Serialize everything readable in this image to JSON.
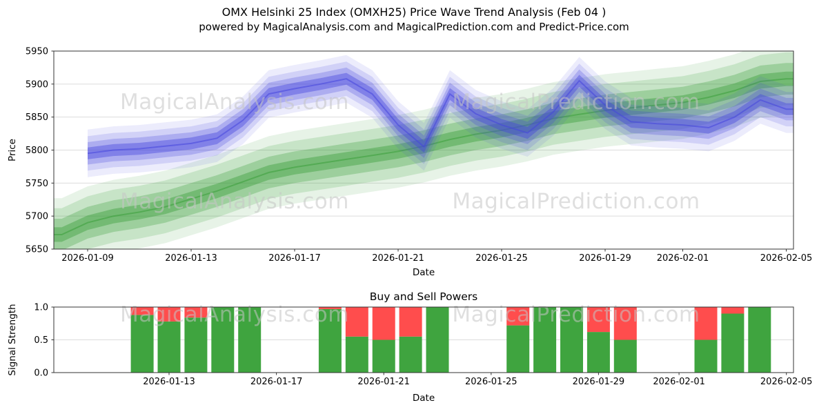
{
  "header": {
    "title_line1": "OMX Helsinki 25 Index (OMXH25) Price Wave Trend Analysis (Feb 04 )",
    "title_line2": "powered by MagicalAnalysis.com and MagicalPrediction.com and Predict-Price.com"
  },
  "chart_data": [
    {
      "type": "area",
      "title": "OMX Helsinki 25 Index (OMXH25) Price Wave Trend Analysis (Feb 04 )",
      "xlabel": "Date",
      "ylabel": "Price",
      "ylim": [
        5650,
        5950
      ],
      "yticks": [
        "5650",
        "5700",
        "5750",
        "5800",
        "5850",
        "5900",
        "5950"
      ],
      "xticks": [
        "2026-01-09",
        "2026-01-13",
        "2026-01-17",
        "2026-01-21",
        "2026-01-25",
        "2026-01-29",
        "2026-02-01",
        "2026-02-05"
      ],
      "grid": "horizontal",
      "legend": "none",
      "watermarks": [
        "MagicalAnalysis.com",
        "MagicalPrediction.com"
      ],
      "series": [
        {
          "name": "analysis-trend-band",
          "color": "#3a9e3a",
          "dates": [
            "2026-01-08",
            "2026-01-09",
            "2026-01-10",
            "2026-01-11",
            "2026-01-12",
            "2026-01-13",
            "2026-01-14",
            "2026-01-15",
            "2026-01-16",
            "2026-01-17",
            "2026-01-18",
            "2026-01-19",
            "2026-01-20",
            "2026-01-21",
            "2026-01-22",
            "2026-01-23",
            "2026-01-24",
            "2026-01-25",
            "2026-01-26",
            "2026-01-27",
            "2026-01-28",
            "2026-01-29",
            "2026-01-30",
            "2026-01-31",
            "2026-02-01",
            "2026-02-02",
            "2026-02-03",
            "2026-02-04",
            "2026-02-05"
          ],
          "values": [
            5672,
            5690,
            5700,
            5706,
            5714,
            5726,
            5738,
            5752,
            5766,
            5774,
            5780,
            5786,
            5792,
            5798,
            5806,
            5816,
            5824,
            5830,
            5838,
            5848,
            5854,
            5860,
            5864,
            5868,
            5872,
            5880,
            5890,
            5904,
            5908
          ]
        },
        {
          "name": "prediction-trend-band",
          "color": "#4646dd",
          "dates": [
            "2026-01-09",
            "2026-01-10",
            "2026-01-11",
            "2026-01-12",
            "2026-01-13",
            "2026-01-14",
            "2026-01-15",
            "2026-01-16",
            "2026-01-17",
            "2026-01-18",
            "2026-01-19",
            "2026-01-20",
            "2026-01-21",
            "2026-01-22",
            "2026-01-23",
            "2026-01-24",
            "2026-01-25",
            "2026-01-26",
            "2026-01-27",
            "2026-01-28",
            "2026-01-29",
            "2026-01-30",
            "2026-01-31",
            "2026-02-01",
            "2026-02-02",
            "2026-02-03",
            "2026-02-04",
            "2026-02-05"
          ],
          "values": [
            5795,
            5800,
            5802,
            5806,
            5810,
            5818,
            5845,
            5885,
            5893,
            5900,
            5908,
            5885,
            5838,
            5805,
            5885,
            5855,
            5838,
            5826,
            5858,
            5905,
            5868,
            5843,
            5840,
            5838,
            5834,
            5850,
            5876,
            5862
          ]
        }
      ]
    },
    {
      "type": "bar",
      "title": "Buy and Sell Powers",
      "xlabel": "Date",
      "ylabel": "Signal Strength",
      "ylim": [
        0,
        1
      ],
      "yticks": [
        "0.0",
        "0.5",
        "1.0"
      ],
      "xticks": [
        "2026-01-13",
        "2026-01-17",
        "2026-01-21",
        "2026-01-25",
        "2026-01-29",
        "2026-02-01",
        "2026-02-05"
      ],
      "categories": [
        "2026-01-12",
        "2026-01-13",
        "2026-01-14",
        "2026-01-15",
        "2026-01-16",
        "2026-01-19",
        "2026-01-20",
        "2026-01-21",
        "2026-01-22",
        "2026-01-23",
        "2026-01-26",
        "2026-01-27",
        "2026-01-28",
        "2026-01-29",
        "2026-01-30",
        "2026-02-02",
        "2026-02-03",
        "2026-02-04"
      ],
      "series": [
        {
          "name": "Buy",
          "color": "#3fa43f",
          "values": [
            0.88,
            0.78,
            0.84,
            1.0,
            1.0,
            0.97,
            0.55,
            0.5,
            0.55,
            1.0,
            0.72,
            1.0,
            1.0,
            0.62,
            0.5,
            0.5,
            0.9,
            1.0
          ]
        },
        {
          "name": "Sell",
          "color": "#ff4d4d",
          "values": [
            0.12,
            0.22,
            0.16,
            0.0,
            0.0,
            0.03,
            0.45,
            0.5,
            0.45,
            0.0,
            0.28,
            0.0,
            0.0,
            0.38,
            0.5,
            0.5,
            0.1,
            0.0
          ]
        }
      ]
    }
  ]
}
